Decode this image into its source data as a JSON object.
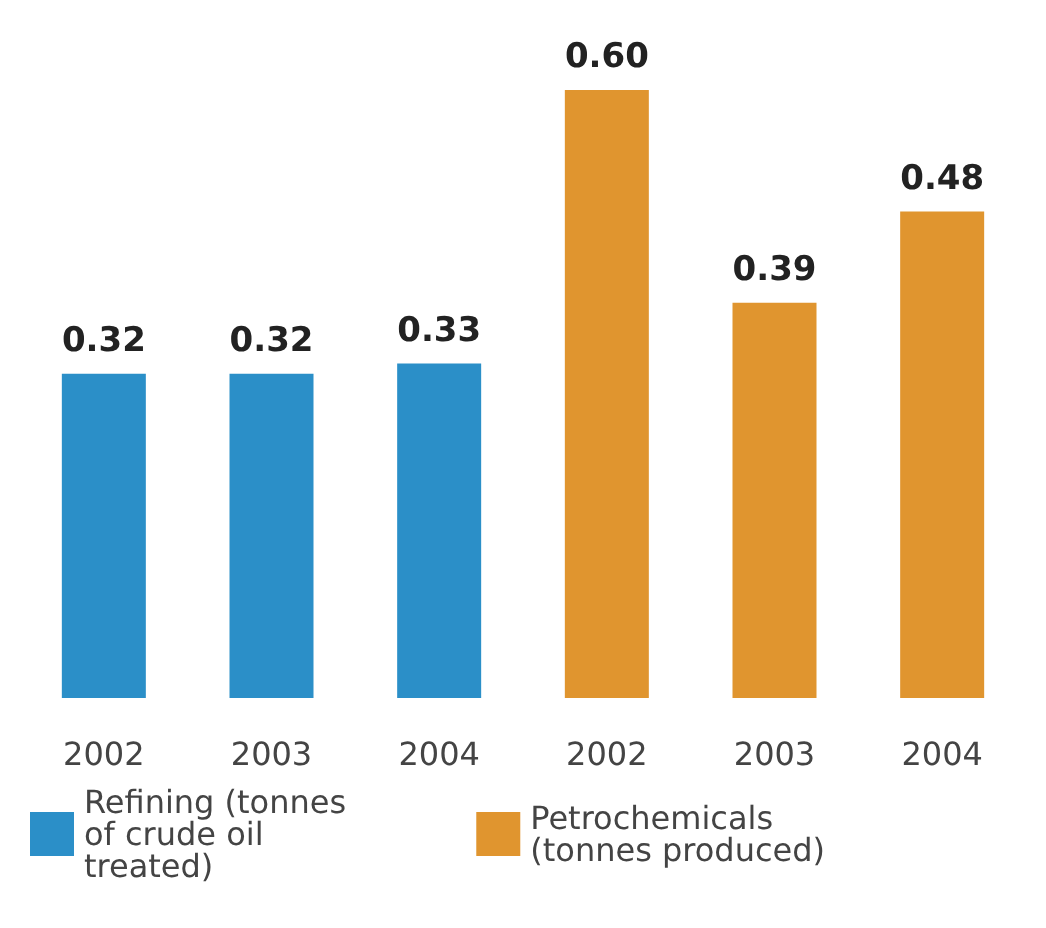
{
  "chart_data": {
    "type": "bar",
    "categories": [
      "2002",
      "2003",
      "2004",
      "2002",
      "2003",
      "2004"
    ],
    "series": [
      {
        "name": "Refining (tonnes of crude oil treated)",
        "color": "#2b8fc8",
        "values": [
          0.32,
          0.32,
          0.33,
          null,
          null,
          null
        ],
        "value_labels": [
          "0.32",
          "0.32",
          "0.33",
          null,
          null,
          null
        ]
      },
      {
        "name": "Petrochemicals (tonnes produced)",
        "color": "#e0952f",
        "values": [
          null,
          null,
          null,
          0.6,
          0.39,
          0.48
        ],
        "value_labels": [
          null,
          null,
          null,
          "0.60",
          "0.39",
          "0.48"
        ]
      }
    ],
    "legend": "bottom"
  }
}
